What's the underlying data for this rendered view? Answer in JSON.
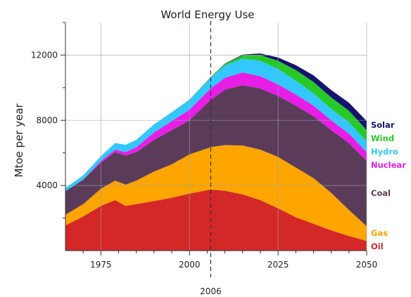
{
  "chart_data": {
    "type": "area",
    "stacked": true,
    "title": "World Energy Use",
    "xlabel": "",
    "ylabel": "Mtoe per year",
    "xlim": [
      1965,
      2050
    ],
    "ylim": [
      0,
      14000
    ],
    "x_ticks": [
      1975,
      2000,
      2025,
      2050
    ],
    "y_ticks": [
      4000,
      8000,
      12000
    ],
    "annotation": {
      "x": 2006,
      "label": "2006",
      "style": "dashed-vertical-line"
    },
    "grid": true,
    "legend_position": "right-inline",
    "x": [
      1965,
      1970,
      1975,
      1979,
      1982,
      1985,
      1990,
      1995,
      2000,
      2006,
      2010,
      2015,
      2020,
      2025,
      2030,
      2035,
      2040,
      2045,
      2050
    ],
    "series": [
      {
        "name": "Oil",
        "color": "#d42828",
        "values": [
          1550,
          2100,
          2750,
          3100,
          2750,
          2850,
          3050,
          3250,
          3500,
          3750,
          3680,
          3450,
          3100,
          2600,
          2050,
          1650,
          1250,
          900,
          600
        ]
      },
      {
        "name": "Gas",
        "color": "#ffa500",
        "values": [
          650,
          750,
          1050,
          1200,
          1300,
          1450,
          1800,
          2050,
          2400,
          2600,
          2800,
          3000,
          3100,
          3150,
          3050,
          2800,
          2300,
          1600,
          900
        ]
      },
      {
        "name": "Coal",
        "color": "#5a3c5a",
        "values": [
          1450,
          1500,
          1600,
          1750,
          1800,
          1750,
          1950,
          2100,
          2100,
          2900,
          3400,
          3700,
          3750,
          3750,
          3800,
          3800,
          3850,
          4100,
          4000
        ]
      },
      {
        "name": "Nuclear",
        "color": "#e61ee6",
        "values": [
          0,
          20,
          100,
          150,
          200,
          300,
          450,
          550,
          650,
          700,
          730,
          780,
          750,
          700,
          680,
          650,
          600,
          580,
          550
        ]
      },
      {
        "name": "Hydro",
        "color": "#32c8ff",
        "values": [
          200,
          250,
          300,
          400,
          450,
          450,
          500,
          550,
          600,
          650,
          750,
          850,
          950,
          950,
          850,
          750,
          700,
          700,
          650
        ]
      },
      {
        "name": "Wind",
        "color": "#28c828",
        "values": [
          0,
          0,
          0,
          0,
          0,
          0,
          0,
          0,
          20,
          40,
          100,
          200,
          350,
          500,
          650,
          700,
          700,
          700,
          700
        ]
      },
      {
        "name": "Solar",
        "color": "#14146e",
        "values": [
          0,
          0,
          0,
          0,
          0,
          0,
          0,
          0,
          0,
          10,
          20,
          50,
          100,
          200,
          300,
          400,
          450,
          500,
          550
        ]
      }
    ]
  }
}
